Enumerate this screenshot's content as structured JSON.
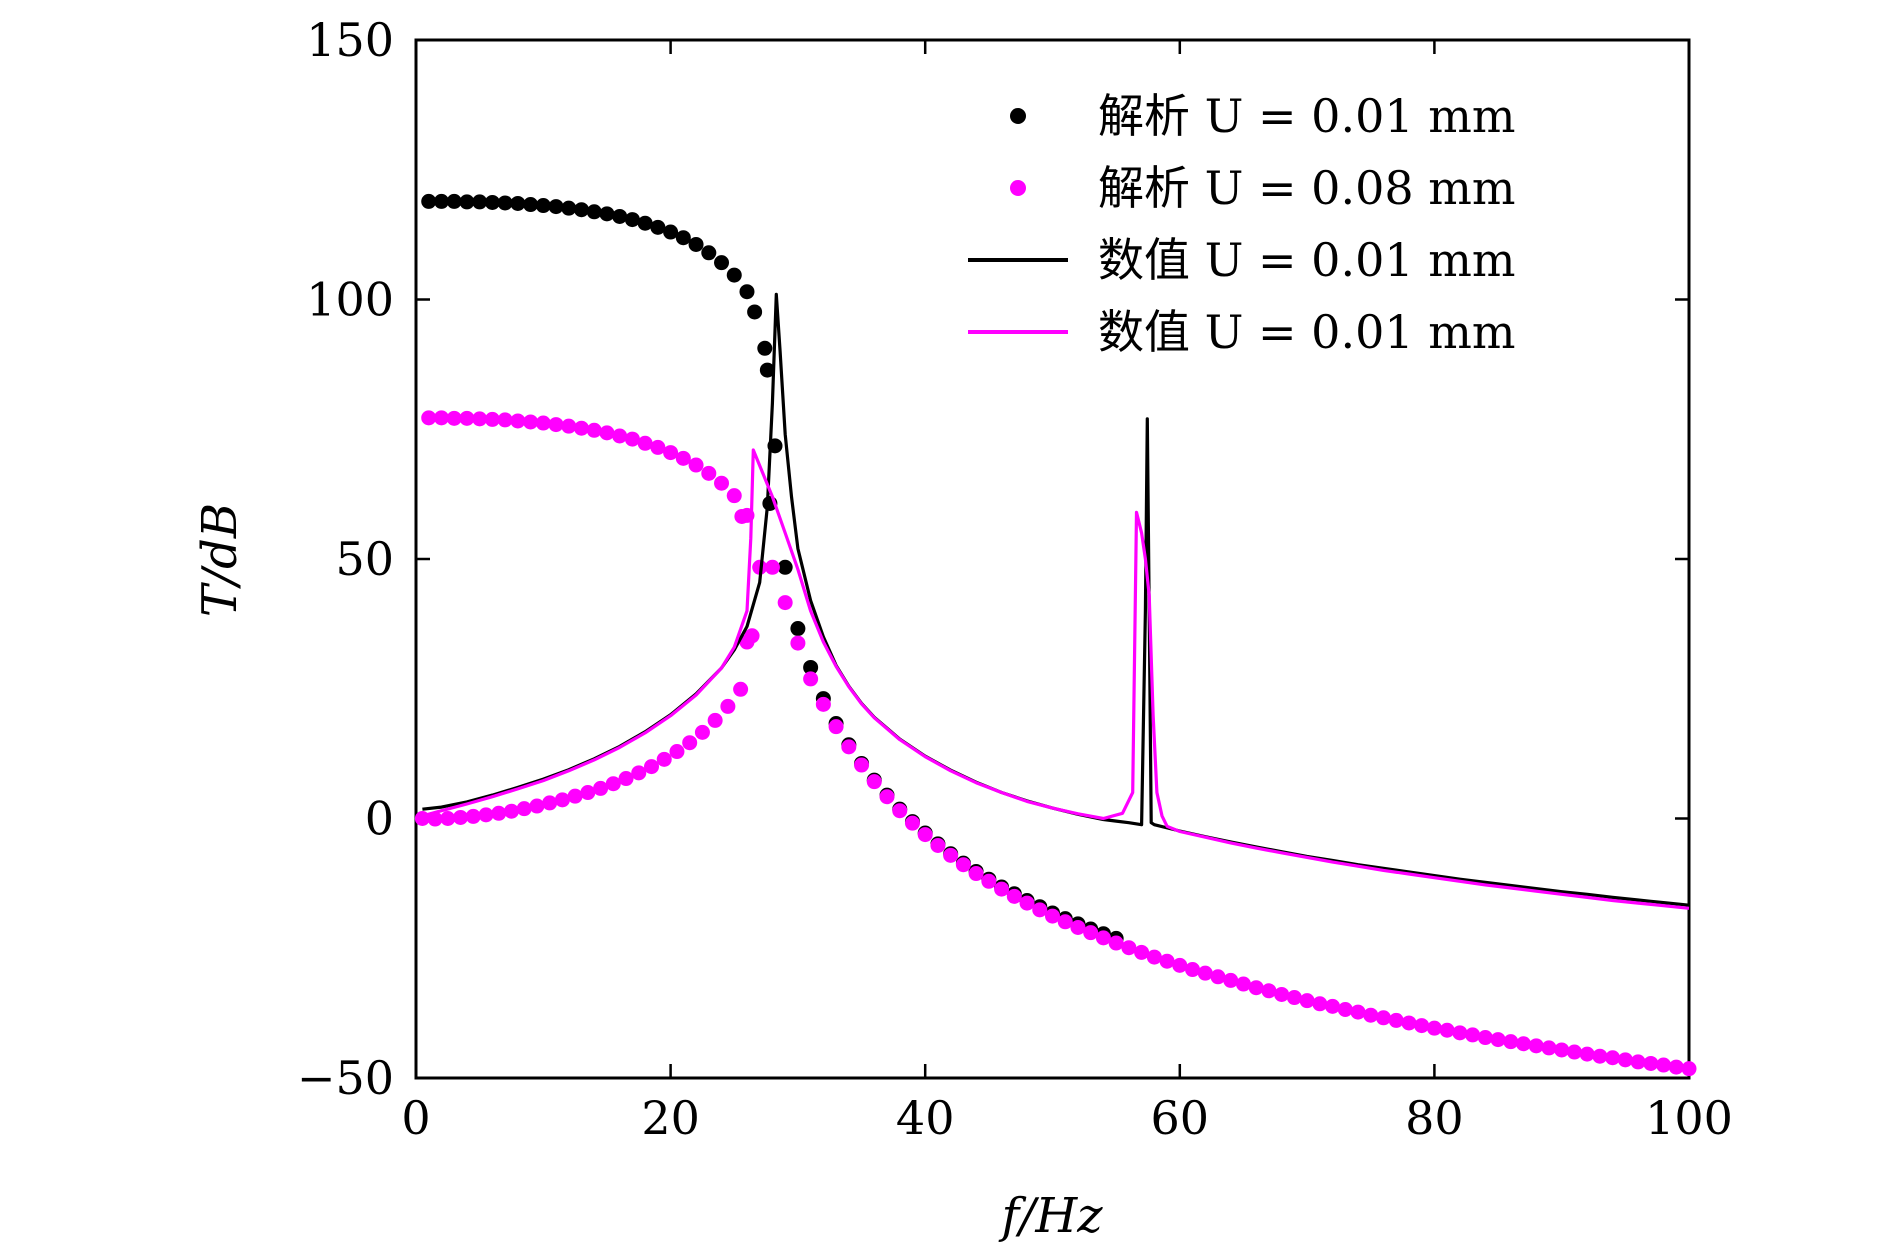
{
  "chart_data": {
    "type": "line",
    "xlabel": "f/Hz",
    "ylabel": "T/dB",
    "xlim": [
      0,
      100
    ],
    "ylim": [
      -50,
      150
    ],
    "xticks": [
      0,
      20,
      40,
      60,
      80,
      100
    ],
    "xtick_labels": [
      "0",
      "20",
      "40",
      "60",
      "80",
      "100"
    ],
    "yticks": [
      -50,
      0,
      50,
      100,
      150
    ],
    "ytick_labels": [
      "−50",
      "0",
      "50",
      "100",
      "150"
    ],
    "grid": false,
    "legend_position": "top-right",
    "series": [
      {
        "name": "解析 U = 0.01 mm",
        "kind": "scatter",
        "color": "#000000",
        "points": [
          [
            1,
            118.9
          ],
          [
            2,
            118.9
          ],
          [
            3,
            118.9
          ],
          [
            4,
            118.8
          ],
          [
            5,
            118.8
          ],
          [
            6,
            118.7
          ],
          [
            7,
            118.6
          ],
          [
            8,
            118.5
          ],
          [
            9,
            118.3
          ],
          [
            10,
            118.1
          ],
          [
            11,
            117.9
          ],
          [
            12,
            117.6
          ],
          [
            13,
            117.3
          ],
          [
            14,
            116.9
          ],
          [
            15,
            116.5
          ],
          [
            16,
            116.0
          ],
          [
            17,
            115.4
          ],
          [
            18,
            114.7
          ],
          [
            19,
            113.9
          ],
          [
            20,
            113.0
          ],
          [
            21,
            111.9
          ],
          [
            22,
            110.6
          ],
          [
            23,
            109.0
          ],
          [
            24,
            107.1
          ],
          [
            25,
            104.7
          ],
          [
            26,
            101.5
          ],
          [
            26.6,
            97.6
          ],
          [
            27.4,
            90.6
          ],
          [
            27.6,
            86.4
          ],
          [
            27.8,
            60.7
          ],
          [
            28.2,
            71.8
          ],
          [
            29,
            48.4
          ],
          [
            30,
            36.6
          ],
          [
            31,
            29.1
          ],
          [
            32,
            23.1
          ],
          [
            33,
            18.3
          ],
          [
            34,
            14.2
          ],
          [
            35,
            10.6
          ],
          [
            36,
            7.4
          ],
          [
            37,
            4.5
          ],
          [
            38,
            1.8
          ],
          [
            39,
            -0.6
          ],
          [
            40,
            -2.8
          ],
          [
            41,
            -4.9
          ],
          [
            42,
            -6.8
          ],
          [
            43,
            -8.6
          ],
          [
            44,
            -10.2
          ],
          [
            45,
            -11.7
          ],
          [
            46,
            -13.2
          ],
          [
            47,
            -14.5
          ],
          [
            48,
            -15.8
          ],
          [
            49,
            -17.0
          ],
          [
            50,
            -18.2
          ],
          [
            51,
            -19.3
          ],
          [
            52,
            -20.3
          ],
          [
            53,
            -21.3
          ],
          [
            54,
            -22.2
          ],
          [
            55,
            -23.1
          ]
        ]
      },
      {
        "name": "解析 U = 0.08 mm",
        "kind": "scatter",
        "color": "#ff00ff",
        "points": [
          [
            1,
            77.2
          ],
          [
            2,
            77.2
          ],
          [
            3,
            77.1
          ],
          [
            4,
            77.1
          ],
          [
            5,
            77.0
          ],
          [
            6,
            76.9
          ],
          [
            7,
            76.8
          ],
          [
            8,
            76.6
          ],
          [
            9,
            76.4
          ],
          [
            10,
            76.2
          ],
          [
            11,
            75.9
          ],
          [
            12,
            75.6
          ],
          [
            13,
            75.2
          ],
          [
            14,
            74.8
          ],
          [
            15,
            74.3
          ],
          [
            16,
            73.7
          ],
          [
            17,
            73.1
          ],
          [
            18,
            72.3
          ],
          [
            19,
            71.5
          ],
          [
            20,
            70.5
          ],
          [
            21,
            69.4
          ],
          [
            22,
            68.1
          ],
          [
            23,
            66.5
          ],
          [
            24,
            64.6
          ],
          [
            25,
            62.2
          ],
          [
            25.6,
            58.2
          ],
          [
            26,
            58.4
          ],
          [
            27,
            48.4
          ],
          [
            28,
            48.4
          ],
          [
            29,
            41.6
          ],
          [
            30,
            33.8
          ],
          [
            31,
            26.9
          ],
          [
            32,
            22.0
          ],
          [
            33,
            17.7
          ],
          [
            34,
            13.8
          ],
          [
            35,
            10.3
          ],
          [
            36,
            7.1
          ],
          [
            37,
            4.2
          ],
          [
            38,
            1.5
          ],
          [
            39,
            -0.9
          ],
          [
            40,
            -3.1
          ],
          [
            41,
            -5.2
          ],
          [
            42,
            -7.1
          ],
          [
            43,
            -8.9
          ],
          [
            44,
            -10.6
          ],
          [
            45,
            -12.1
          ],
          [
            46,
            -13.6
          ],
          [
            47,
            -15.0
          ],
          [
            48,
            -16.3
          ],
          [
            49,
            -17.6
          ],
          [
            50,
            -18.8
          ],
          [
            51,
            -19.9
          ],
          [
            52,
            -21.0
          ],
          [
            53,
            -22.0
          ],
          [
            54,
            -23.0
          ],
          [
            55,
            -24.0
          ],
          [
            56,
            -24.9
          ],
          [
            57,
            -25.8
          ],
          [
            58,
            -26.7
          ],
          [
            59,
            -27.5
          ],
          [
            60,
            -28.3
          ],
          [
            61,
            -29.1
          ],
          [
            62,
            -29.8
          ],
          [
            63,
            -30.5
          ],
          [
            64,
            -31.2
          ],
          [
            65,
            -31.9
          ],
          [
            66,
            -32.6
          ],
          [
            67,
            -33.2
          ],
          [
            68,
            -33.9
          ],
          [
            69,
            -34.5
          ],
          [
            70,
            -35.1
          ],
          [
            71,
            -35.7
          ],
          [
            72,
            -36.2
          ],
          [
            73,
            -36.8
          ],
          [
            74,
            -37.3
          ],
          [
            75,
            -37.9
          ],
          [
            76,
            -38.4
          ],
          [
            77,
            -38.9
          ],
          [
            78,
            -39.4
          ],
          [
            79,
            -39.9
          ],
          [
            80,
            -40.4
          ],
          [
            81,
            -40.8
          ],
          [
            82,
            -41.3
          ],
          [
            83,
            -41.7
          ],
          [
            84,
            -42.2
          ],
          [
            85,
            -42.6
          ],
          [
            86,
            -43.0
          ],
          [
            87,
            -43.4
          ],
          [
            88,
            -43.8
          ],
          [
            89,
            -44.2
          ],
          [
            90,
            -44.6
          ],
          [
            91,
            -45.0
          ],
          [
            92,
            -45.4
          ],
          [
            93,
            -45.8
          ],
          [
            94,
            -46.1
          ],
          [
            95,
            -46.5
          ],
          [
            96,
            -46.9
          ],
          [
            97,
            -47.2
          ],
          [
            98,
            -47.5
          ],
          [
            99,
            -47.9
          ],
          [
            100,
            -48.2
          ],
          [
            0.5,
            0.0
          ],
          [
            1.5,
            -0.1
          ],
          [
            2.5,
            0.0
          ],
          [
            3.5,
            0.2
          ],
          [
            4.5,
            0.4
          ],
          [
            5.5,
            0.7
          ],
          [
            6.5,
            1.0
          ],
          [
            7.5,
            1.4
          ],
          [
            8.5,
            1.9
          ],
          [
            9.5,
            2.4
          ],
          [
            10.5,
            3.0
          ],
          [
            11.5,
            3.6
          ],
          [
            12.5,
            4.3
          ],
          [
            13.5,
            5.0
          ],
          [
            14.5,
            5.8
          ],
          [
            15.5,
            6.7
          ],
          [
            16.5,
            7.7
          ],
          [
            17.5,
            8.8
          ],
          [
            18.5,
            10.0
          ],
          [
            19.5,
            11.4
          ],
          [
            20.5,
            12.9
          ],
          [
            21.5,
            14.6
          ],
          [
            22.5,
            16.6
          ],
          [
            23.5,
            18.9
          ],
          [
            24.5,
            21.6
          ],
          [
            25.5,
            24.9
          ],
          [
            26.0,
            34.0
          ],
          [
            26.4,
            35.2
          ]
        ]
      },
      {
        "name": "数值 U = 0.01 mm",
        "kind": "line",
        "color": "#000000",
        "points": [
          [
            0.5,
            1.8
          ],
          [
            2,
            2.2
          ],
          [
            4,
            3.2
          ],
          [
            6,
            4.5
          ],
          [
            8,
            6.0
          ],
          [
            10,
            7.6
          ],
          [
            12,
            9.4
          ],
          [
            14,
            11.5
          ],
          [
            16,
            13.9
          ],
          [
            18,
            16.7
          ],
          [
            20,
            20.0
          ],
          [
            22,
            24.0
          ],
          [
            24,
            29.0
          ],
          [
            25,
            32.5
          ],
          [
            26,
            37.0
          ],
          [
            27,
            45.5
          ],
          [
            27.6,
            60.0
          ],
          [
            28.0,
            80.0
          ],
          [
            28.3,
            101.0
          ],
          [
            28.6,
            90.0
          ],
          [
            29.0,
            74.0
          ],
          [
            29.5,
            62.0
          ],
          [
            30,
            52.0
          ],
          [
            31,
            42.0
          ],
          [
            32,
            35.0
          ],
          [
            33,
            29.5
          ],
          [
            34,
            25.5
          ],
          [
            35,
            22.2
          ],
          [
            36,
            19.5
          ],
          [
            38,
            15.3
          ],
          [
            40,
            12.0
          ],
          [
            42,
            9.3
          ],
          [
            44,
            7.0
          ],
          [
            46,
            5.0
          ],
          [
            48,
            3.4
          ],
          [
            50,
            2.0
          ],
          [
            52,
            0.8
          ],
          [
            54,
            -0.2
          ],
          [
            55,
            -0.5
          ],
          [
            56,
            -0.8
          ],
          [
            57,
            -1.2
          ],
          [
            57.3,
            40.0
          ],
          [
            57.45,
            77.0
          ],
          [
            57.6,
            40.0
          ],
          [
            57.75,
            -0.8
          ],
          [
            58,
            -1.2
          ],
          [
            60,
            -2.4
          ],
          [
            62,
            -3.5
          ],
          [
            64,
            -4.5
          ],
          [
            66,
            -5.5
          ],
          [
            68,
            -6.4
          ],
          [
            70,
            -7.3
          ],
          [
            72,
            -8.1
          ],
          [
            74,
            -8.9
          ],
          [
            76,
            -9.6
          ],
          [
            78,
            -10.3
          ],
          [
            80,
            -11.0
          ],
          [
            82,
            -11.7
          ],
          [
            84,
            -12.3
          ],
          [
            86,
            -12.9
          ],
          [
            88,
            -13.5
          ],
          [
            90,
            -14.1
          ],
          [
            92,
            -14.6
          ],
          [
            94,
            -15.2
          ],
          [
            96,
            -15.7
          ],
          [
            98,
            -16.2
          ],
          [
            100,
            -16.7
          ]
        ]
      },
      {
        "name": "数值 U = 0.01 mm",
        "kind": "line",
        "color": "#ff00ff",
        "points": [
          [
            0.5,
            0.5
          ],
          [
            2,
            1.5
          ],
          [
            4,
            2.8
          ],
          [
            6,
            4.2
          ],
          [
            8,
            5.7
          ],
          [
            10,
            7.3
          ],
          [
            12,
            9.2
          ],
          [
            14,
            11.3
          ],
          [
            16,
            13.7
          ],
          [
            18,
            16.5
          ],
          [
            20,
            19.8
          ],
          [
            22,
            23.8
          ],
          [
            24,
            29.0
          ],
          [
            25,
            33.0
          ],
          [
            26,
            40.0
          ],
          [
            26.3,
            54.0
          ],
          [
            26.5,
            71.0
          ],
          [
            27.0,
            68.0
          ],
          [
            28,
            62.0
          ],
          [
            29,
            55.0
          ],
          [
            30,
            48.0
          ],
          [
            31,
            40.0
          ],
          [
            32,
            34.0
          ],
          [
            33,
            29.3
          ],
          [
            34,
            25.4
          ],
          [
            35,
            22.1
          ],
          [
            36,
            19.4
          ],
          [
            38,
            15.2
          ],
          [
            40,
            11.9
          ],
          [
            42,
            9.2
          ],
          [
            44,
            6.9
          ],
          [
            46,
            5.0
          ],
          [
            48,
            3.3
          ],
          [
            50,
            2.0
          ],
          [
            52,
            0.9
          ],
          [
            54,
            0.0
          ],
          [
            55.5,
            1.0
          ],
          [
            56.3,
            5.0
          ],
          [
            56.6,
            59.0
          ],
          [
            57.0,
            55.0
          ],
          [
            57.3,
            50.0
          ],
          [
            57.6,
            43.0
          ],
          [
            57.9,
            20.0
          ],
          [
            58.2,
            5.0
          ],
          [
            58.6,
            0.5
          ],
          [
            59,
            -1.5
          ],
          [
            60,
            -2.5
          ],
          [
            62,
            -3.6
          ],
          [
            64,
            -4.7
          ],
          [
            66,
            -5.7
          ],
          [
            68,
            -6.6
          ],
          [
            70,
            -7.5
          ],
          [
            72,
            -8.4
          ],
          [
            74,
            -9.2
          ],
          [
            76,
            -10.0
          ],
          [
            78,
            -10.7
          ],
          [
            80,
            -11.4
          ],
          [
            82,
            -12.1
          ],
          [
            84,
            -12.8
          ],
          [
            86,
            -13.4
          ],
          [
            88,
            -14.0
          ],
          [
            90,
            -14.6
          ],
          [
            92,
            -15.2
          ],
          [
            94,
            -15.8
          ],
          [
            96,
            -16.3
          ],
          [
            98,
            -16.8
          ],
          [
            100,
            -17.3
          ]
        ]
      }
    ]
  }
}
